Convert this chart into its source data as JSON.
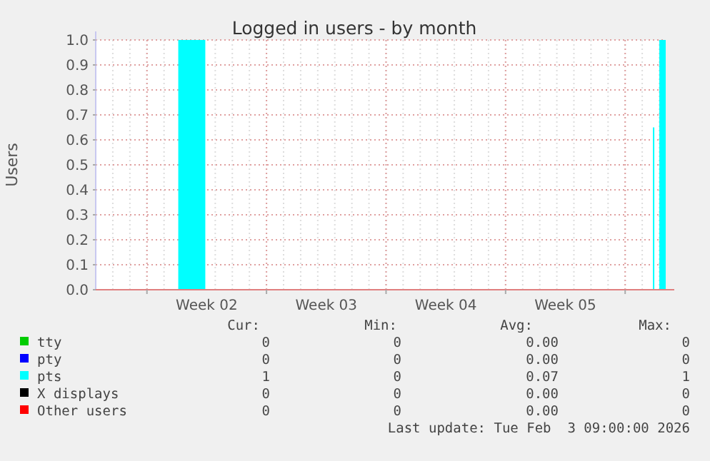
{
  "chart_data": {
    "type": "area",
    "title": "Logged in users - by month",
    "ylabel": "Users",
    "x": [
      "2026-01-01T00:00",
      "2026-01-05T20:00",
      "2026-01-07T10:00",
      "2026-02-02T15:00",
      "2026-02-02T17:00",
      "2026-02-03T00:00",
      "2026-02-03T09:00"
    ],
    "series": [
      {
        "name": "tty",
        "color": "#00cc00",
        "values": [
          null,
          null,
          null,
          null,
          null,
          null,
          null
        ]
      },
      {
        "name": "pty",
        "color": "#0000ff",
        "values": [
          null,
          null,
          null,
          null,
          null,
          null,
          null
        ]
      },
      {
        "name": "pts",
        "color": "#00ffff",
        "values": [
          0,
          1,
          0,
          0.65,
          0,
          1,
          1
        ]
      },
      {
        "name": "X displays",
        "color": "#000000",
        "values": [
          null,
          null,
          null,
          null,
          null,
          null,
          null
        ]
      },
      {
        "name": "Other users",
        "color": "#ff0000",
        "values": [
          null,
          null,
          null,
          null,
          null,
          null,
          null
        ]
      }
    ],
    "xlim": [
      "2026-01-01T00:00",
      "2026-02-03T09:00"
    ],
    "xticks": [
      {
        "value": "2026-01-04T00:00",
        "label": null
      },
      {
        "value": "2026-01-07T12:00",
        "label": "Week 02"
      },
      {
        "value": "2026-01-11T00:00",
        "label": null
      },
      {
        "value": "2026-01-14T12:00",
        "label": "Week 03"
      },
      {
        "value": "2026-01-18T00:00",
        "label": null
      },
      {
        "value": "2026-01-21T12:00",
        "label": "Week 04"
      },
      {
        "value": "2026-01-25T00:00",
        "label": null
      },
      {
        "value": "2026-01-28T12:00",
        "label": "Week 05"
      },
      {
        "value": "2026-02-01T00:00",
        "label": null
      }
    ],
    "ylim": [
      0,
      1
    ],
    "yticks": [
      {
        "value": 0,
        "label": "0.0"
      },
      {
        "value": 0.1,
        "label": "0.1"
      },
      {
        "value": 0.2,
        "label": "0.2"
      },
      {
        "value": 0.3,
        "label": "0.3"
      },
      {
        "value": 0.4,
        "label": "0.4"
      },
      {
        "value": 0.5,
        "label": "0.5"
      },
      {
        "value": 0.6,
        "label": "0.6"
      },
      {
        "value": 0.7,
        "label": "0.7"
      },
      {
        "value": 0.8,
        "label": "0.8"
      },
      {
        "value": 0.9,
        "label": "0.9"
      },
      {
        "value": 1,
        "label": "1.0"
      }
    ],
    "grid": true,
    "legend": "bottom",
    "annotations": [
      "Cur:",
      "Min:",
      "Avg:",
      "Max:",
      "0",
      "0",
      "0.00",
      "0",
      "0",
      "0",
      "0.00",
      "0",
      "1",
      "0",
      "0.07",
      "1",
      "0",
      "0",
      "0.00",
      "0",
      "0",
      "0",
      "0.00",
      "0",
      "Last update: Tue Feb  3 09:00:00 2026"
    ]
  }
}
